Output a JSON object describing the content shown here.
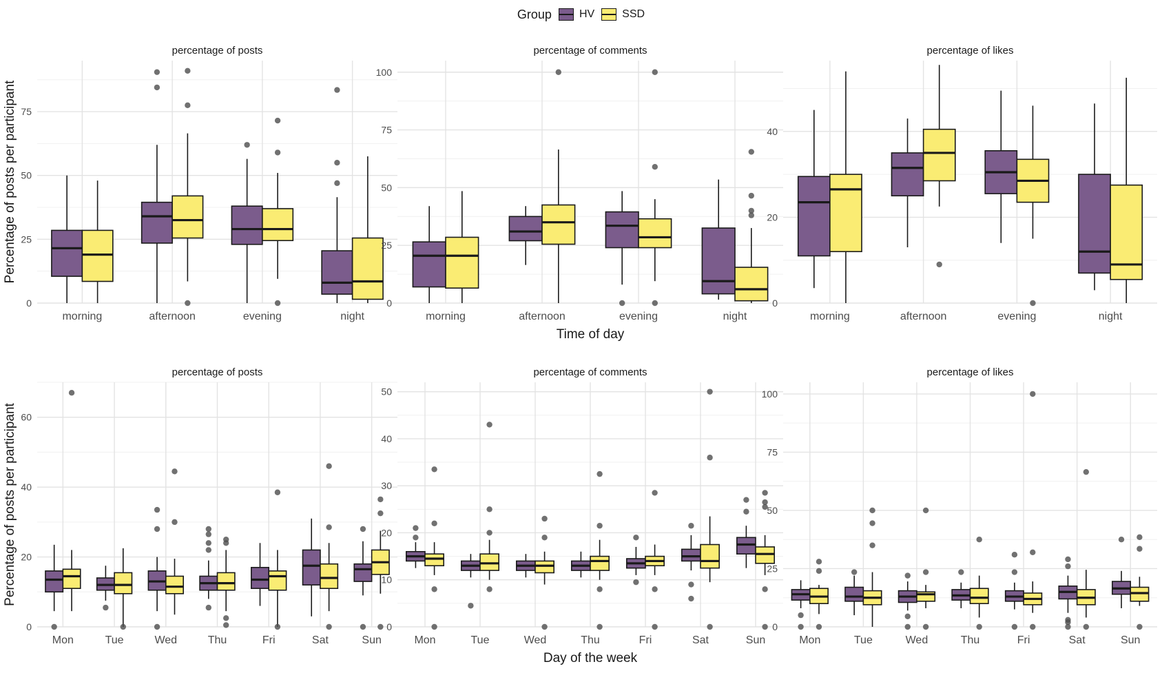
{
  "legend": {
    "title": "Group",
    "entries": [
      {
        "name": "HV",
        "color": "#7b5c8c"
      },
      {
        "name": "SSD",
        "color": "#faec73"
      }
    ]
  },
  "colors": {
    "HV": "#7b5c8c",
    "SSD": "#faec73",
    "grid": "#e3e3e3",
    "outlier": "#4d4d4d",
    "text": "#1a1a1a"
  },
  "chart_data": [
    {
      "type": "boxplot",
      "title": "percentage of posts",
      "ylabel": "Percentage of posts per participant",
      "xlabel": "",
      "ylim": [
        0,
        95
      ],
      "yticks": [
        0,
        25,
        50,
        75
      ],
      "categories": [
        "morning",
        "afternoon",
        "evening",
        "night"
      ],
      "series": [
        {
          "name": "HV",
          "boxes": [
            {
              "q1": 10.5,
              "median": 21.5,
              "q3": 28.5,
              "whislo": 0,
              "whishi": 50,
              "outliers": []
            },
            {
              "q1": 23.5,
              "median": 34,
              "q3": 39.5,
              "whislo": 0,
              "whishi": 62,
              "outliers": [
                84.5,
                90.5
              ]
            },
            {
              "q1": 23,
              "median": 29,
              "q3": 38,
              "whislo": 0,
              "whishi": 56.5,
              "outliers": [
                62
              ]
            },
            {
              "q1": 3.5,
              "median": 8,
              "q3": 20.5,
              "whislo": 0,
              "whishi": 41.5,
              "outliers": [
                47,
                55,
                83.5
              ]
            }
          ]
        },
        {
          "name": "SSD",
          "boxes": [
            {
              "q1": 8.5,
              "median": 19,
              "q3": 28.5,
              "whislo": 0,
              "whishi": 48,
              "outliers": []
            },
            {
              "q1": 25.5,
              "median": 32.5,
              "q3": 42,
              "whislo": 8.5,
              "whishi": 66.5,
              "outliers": [
                0,
                77.5,
                91
              ]
            },
            {
              "q1": 24.5,
              "median": 29,
              "q3": 37,
              "whislo": 9.5,
              "whishi": 51,
              "outliers": [
                0,
                59,
                71.5
              ]
            },
            {
              "q1": 1.5,
              "median": 8.5,
              "q3": 25.5,
              "whislo": 0,
              "whishi": 57.5,
              "outliers": []
            }
          ]
        }
      ]
    },
    {
      "type": "boxplot",
      "title": "percentage of comments",
      "ylabel": "",
      "xlabel": "Time of day",
      "ylim": [
        0,
        105
      ],
      "yticks": [
        0,
        25,
        50,
        75,
        100
      ],
      "categories": [
        "morning",
        "afternoon",
        "evening",
        "night"
      ],
      "series": [
        {
          "name": "HV",
          "boxes": [
            {
              "q1": 7,
              "median": 20.5,
              "q3": 26.5,
              "whislo": 0,
              "whishi": 42,
              "outliers": []
            },
            {
              "q1": 27,
              "median": 31,
              "q3": 37.5,
              "whislo": 16.5,
              "whishi": 42,
              "outliers": []
            },
            {
              "q1": 24,
              "median": 33.5,
              "q3": 39.5,
              "whislo": 8,
              "whishi": 48.5,
              "outliers": [
                0
              ]
            },
            {
              "q1": 4,
              "median": 9.5,
              "q3": 32.5,
              "whislo": 1.5,
              "whishi": 53.5,
              "outliers": []
            }
          ]
        },
        {
          "name": "SSD",
          "boxes": [
            {
              "q1": 6.5,
              "median": 20.5,
              "q3": 28.5,
              "whislo": 0,
              "whishi": 48.5,
              "outliers": []
            },
            {
              "q1": 25.5,
              "median": 35,
              "q3": 42.5,
              "whislo": 0,
              "whishi": 66.5,
              "outliers": [
                100
              ]
            },
            {
              "q1": 24,
              "median": 28.5,
              "q3": 36.5,
              "whislo": 9.5,
              "whishi": 45,
              "outliers": [
                0,
                59,
                100
              ]
            },
            {
              "q1": 1,
              "median": 6,
              "q3": 15.5,
              "whislo": 0,
              "whishi": 32.5,
              "outliers": [
                38,
                40,
                46.5,
                65.5
              ]
            }
          ]
        }
      ]
    },
    {
      "type": "boxplot",
      "title": "percentage of likes",
      "ylabel": "",
      "xlabel": "",
      "ylim": [
        0,
        56.5
      ],
      "yticks": [
        0,
        20,
        40
      ],
      "categories": [
        "morning",
        "afternoon",
        "evening",
        "night"
      ],
      "series": [
        {
          "name": "HV",
          "boxes": [
            {
              "q1": 11,
              "median": 23.5,
              "q3": 29.5,
              "whislo": 3.5,
              "whishi": 45,
              "outliers": []
            },
            {
              "q1": 25,
              "median": 31.5,
              "q3": 35,
              "whislo": 13,
              "whishi": 43,
              "outliers": []
            },
            {
              "q1": 25.5,
              "median": 30.5,
              "q3": 35.5,
              "whislo": 14,
              "whishi": 49.5,
              "outliers": []
            },
            {
              "q1": 7,
              "median": 12,
              "q3": 30,
              "whislo": 3,
              "whishi": 46.5,
              "outliers": []
            }
          ]
        },
        {
          "name": "SSD",
          "boxes": [
            {
              "q1": 12,
              "median": 26.5,
              "q3": 30,
              "whislo": 0,
              "whishi": 54,
              "outliers": []
            },
            {
              "q1": 28.5,
              "median": 35,
              "q3": 40.5,
              "whislo": 22.5,
              "whishi": 55.5,
              "outliers": [
                9
              ]
            },
            {
              "q1": 23.5,
              "median": 28.5,
              "q3": 33.5,
              "whislo": 15,
              "whishi": 46,
              "outliers": [
                0
              ]
            },
            {
              "q1": 5.5,
              "median": 9,
              "q3": 27.5,
              "whislo": 0,
              "whishi": 52.5,
              "outliers": []
            }
          ]
        }
      ]
    },
    {
      "type": "boxplot",
      "title": "percentage of posts",
      "ylabel": "Percentage of posts per participant",
      "xlabel": "",
      "ylim": [
        0,
        70
      ],
      "yticks": [
        0,
        20,
        40,
        60
      ],
      "categories": [
        "Mon",
        "Tue",
        "Wed",
        "Thu",
        "Fri",
        "Sat",
        "Sun"
      ],
      "series": [
        {
          "name": "HV",
          "boxes": [
            {
              "q1": 10,
              "median": 13.5,
              "q3": 16,
              "whislo": 4.5,
              "whishi": 23.5,
              "outliers": [
                0
              ]
            },
            {
              "q1": 10.5,
              "median": 12,
              "q3": 14,
              "whislo": 7.5,
              "whishi": 17.5,
              "outliers": [
                5.5
              ]
            },
            {
              "q1": 10.5,
              "median": 13,
              "q3": 16,
              "whislo": 4.5,
              "whishi": 20,
              "outliers": [
                0,
                28,
                33.5
              ]
            },
            {
              "q1": 10.5,
              "median": 12.5,
              "q3": 14.5,
              "whislo": 8,
              "whishi": 19,
              "outliers": [
                5.5,
                22,
                24,
                26.5,
                28
              ]
            },
            {
              "q1": 11,
              "median": 13.5,
              "q3": 17,
              "whislo": 6,
              "whishi": 24,
              "outliers": []
            },
            {
              "q1": 12,
              "median": 17.5,
              "q3": 22,
              "whislo": 3,
              "whishi": 31,
              "outliers": []
            },
            {
              "q1": 13,
              "median": 16.5,
              "q3": 18,
              "whislo": 9,
              "whishi": 24.5,
              "outliers": [
                0,
                28
              ]
            }
          ]
        },
        {
          "name": "SSD",
          "boxes": [
            {
              "q1": 11,
              "median": 14.5,
              "q3": 16.5,
              "whislo": 4.5,
              "whishi": 22,
              "outliers": [
                67
              ]
            },
            {
              "q1": 9.5,
              "median": 12,
              "q3": 15.5,
              "whislo": 0,
              "whishi": 22.5,
              "outliers": [
                0
              ]
            },
            {
              "q1": 9.5,
              "median": 11.5,
              "q3": 14.5,
              "whislo": 3.5,
              "whishi": 19.5,
              "outliers": [
                30,
                44.5
              ]
            },
            {
              "q1": 10.5,
              "median": 12.5,
              "q3": 15.5,
              "whislo": 4.5,
              "whishi": 22,
              "outliers": [
                0.5,
                2.5,
                24,
                25
              ]
            },
            {
              "q1": 10.5,
              "median": 14.5,
              "q3": 16,
              "whislo": 0,
              "whishi": 22,
              "outliers": [
                0,
                38.5
              ]
            },
            {
              "q1": 11,
              "median": 14,
              "q3": 18,
              "whislo": 4.5,
              "whishi": 24,
              "outliers": [
                0,
                28.5,
                46
              ]
            },
            {
              "q1": 15,
              "median": 18.5,
              "q3": 22,
              "whislo": 9.5,
              "whishi": 27.5,
              "outliers": [
                0,
                32.5,
                36.5
              ]
            }
          ]
        }
      ]
    },
    {
      "type": "boxplot",
      "title": "percentage of comments",
      "ylabel": "",
      "xlabel": "Day of the week",
      "ylim": [
        0,
        52
      ],
      "yticks": [
        0,
        10,
        20,
        30,
        40,
        50
      ],
      "categories": [
        "Mon",
        "Tue",
        "Wed",
        "Thu",
        "Fri",
        "Sat",
        "Sun"
      ],
      "series": [
        {
          "name": "HV",
          "boxes": [
            {
              "q1": 14,
              "median": 15,
              "q3": 16,
              "whislo": 12.5,
              "whishi": 18,
              "outliers": [
                19,
                21
              ]
            },
            {
              "q1": 12,
              "median": 13,
              "q3": 14,
              "whislo": 10.5,
              "whishi": 15.5,
              "outliers": [
                4.5
              ]
            },
            {
              "q1": 12,
              "median": 13,
              "q3": 14,
              "whislo": 10.5,
              "whishi": 15.5,
              "outliers": []
            },
            {
              "q1": 12,
              "median": 13,
              "q3": 14,
              "whislo": 10.5,
              "whishi": 16,
              "outliers": []
            },
            {
              "q1": 12.5,
              "median": 13.5,
              "q3": 14.5,
              "whislo": 11,
              "whishi": 17,
              "outliers": [
                9.5,
                19
              ]
            },
            {
              "q1": 14,
              "median": 15,
              "q3": 16.5,
              "whislo": 12,
              "whishi": 19.5,
              "outliers": [
                6,
                9,
                21.5
              ]
            },
            {
              "q1": 15.5,
              "median": 17.5,
              "q3": 19,
              "whislo": 12.5,
              "whishi": 21.5,
              "outliers": [
                24.5,
                27
              ]
            }
          ]
        },
        {
          "name": "SSD",
          "boxes": [
            {
              "q1": 13,
              "median": 14.5,
              "q3": 15.5,
              "whislo": 11,
              "whishi": 18,
              "outliers": [
                0,
                8,
                22,
                33.5
              ]
            },
            {
              "q1": 12,
              "median": 13.5,
              "q3": 15.5,
              "whislo": 10,
              "whishi": 18.5,
              "outliers": [
                8,
                20,
                25,
                43
              ]
            },
            {
              "q1": 11.5,
              "median": 13,
              "q3": 14,
              "whislo": 9,
              "whishi": 16,
              "outliers": [
                0,
                19,
                23
              ]
            },
            {
              "q1": 12,
              "median": 14,
              "q3": 15,
              "whislo": 10,
              "whishi": 18.5,
              "outliers": [
                0,
                8,
                21.5,
                32.5
              ]
            },
            {
              "q1": 13,
              "median": 14,
              "q3": 15,
              "whislo": 11,
              "whishi": 17.5,
              "outliers": [
                0,
                8,
                28.5
              ]
            },
            {
              "q1": 12.5,
              "median": 14,
              "q3": 17.5,
              "whislo": 9.5,
              "whishi": 23.5,
              "outliers": [
                0,
                36,
                50
              ]
            },
            {
              "q1": 13.5,
              "median": 15.5,
              "q3": 17,
              "whislo": 11,
              "whishi": 19.5,
              "outliers": [
                0,
                8,
                25.5,
                26.5,
                28.5
              ]
            }
          ]
        }
      ]
    },
    {
      "type": "boxplot",
      "title": "percentage of likes",
      "ylabel": "",
      "xlabel": "",
      "ylim": [
        0,
        105
      ],
      "yticks": [
        0,
        25,
        50,
        75,
        100
      ],
      "categories": [
        "Mon",
        "Tue",
        "Wed",
        "Thu",
        "Fri",
        "Sat",
        "Sun"
      ],
      "series": [
        {
          "name": "HV",
          "boxes": [
            {
              "q1": 11.5,
              "median": 14,
              "q3": 16,
              "whislo": 8,
              "whishi": 20,
              "outliers": [
                0,
                5
              ]
            },
            {
              "q1": 11,
              "median": 13,
              "q3": 17,
              "whislo": 5,
              "whishi": 22,
              "outliers": [
                23.5
              ]
            },
            {
              "q1": 10.5,
              "median": 13,
              "q3": 15.5,
              "whislo": 7,
              "whishi": 19.5,
              "outliers": [
                0,
                4.5,
                22
              ]
            },
            {
              "q1": 11.5,
              "median": 13.5,
              "q3": 16,
              "whislo": 8,
              "whishi": 19,
              "outliers": [
                23.5
              ]
            },
            {
              "q1": 11,
              "median": 13,
              "q3": 15.5,
              "whislo": 7.5,
              "whishi": 19,
              "outliers": [
                0,
                23.5,
                31
              ]
            },
            {
              "q1": 12,
              "median": 15,
              "q3": 17.5,
              "whislo": 6,
              "whishi": 22,
              "outliers": [
                0,
                2,
                3,
                26,
                29
              ]
            },
            {
              "q1": 14,
              "median": 16.5,
              "q3": 19.5,
              "whislo": 8,
              "whishi": 24,
              "outliers": [
                37.5
              ]
            }
          ]
        },
        {
          "name": "SSD",
          "boxes": [
            {
              "q1": 10,
              "median": 13,
              "q3": 16.5,
              "whislo": 5.5,
              "whishi": 18,
              "outliers": [
                0,
                24,
                28
              ]
            },
            {
              "q1": 9.5,
              "median": 12.5,
              "q3": 15.5,
              "whislo": 0,
              "whishi": 23.5,
              "outliers": [
                35,
                44.5,
                50
              ]
            },
            {
              "q1": 11,
              "median": 14,
              "q3": 15,
              "whislo": 8,
              "whishi": 18,
              "outliers": [
                0,
                23.5,
                50
              ]
            },
            {
              "q1": 10,
              "median": 12.5,
              "q3": 16.5,
              "whislo": 4,
              "whishi": 22,
              "outliers": [
                0,
                37.5
              ]
            },
            {
              "q1": 9.5,
              "median": 12,
              "q3": 14.5,
              "whislo": 6,
              "whishi": 19.5,
              "outliers": [
                0,
                32,
                100
              ]
            },
            {
              "q1": 9.5,
              "median": 12.5,
              "q3": 16,
              "whislo": 4,
              "whishi": 24.5,
              "outliers": [
                0,
                66.5
              ]
            },
            {
              "q1": 11,
              "median": 14.5,
              "q3": 17,
              "whislo": 9,
              "whishi": 21.5,
              "outliers": [
                0,
                33.5,
                38.5
              ]
            }
          ]
        }
      ]
    }
  ]
}
